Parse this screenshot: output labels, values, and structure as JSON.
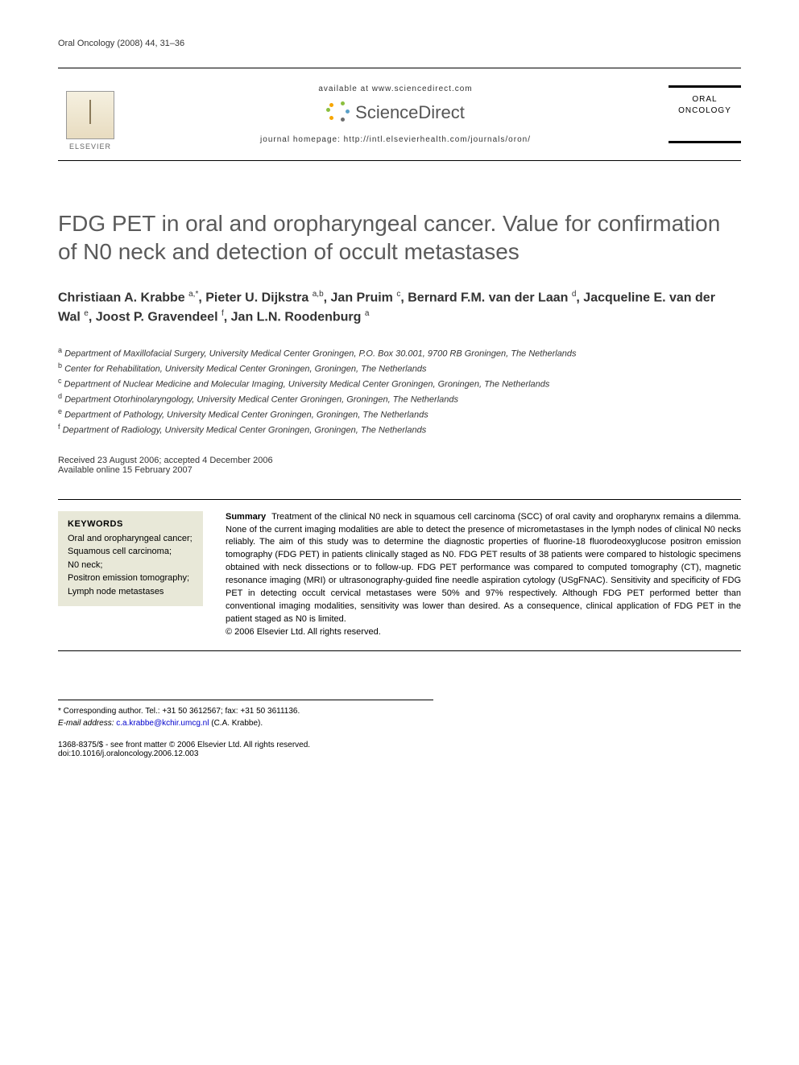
{
  "running_head": "Oral Oncology (2008) 44, 31–36",
  "masthead": {
    "available_at": "available at www.sciencedirect.com",
    "sd_brand": "ScienceDirect",
    "homepage_label": "journal homepage: http://intl.elsevierhealth.com/journals/oron/",
    "publisher_label": "ELSEVIER",
    "journal_cover_line1": "ORAL",
    "journal_cover_line2": "ONCOLOGY",
    "burst_colors": [
      "#f7a600",
      "#8bbf3f",
      "#5aa0c8",
      "#6d6d6d",
      "#f7a600",
      "#8bbf3f"
    ]
  },
  "title": "FDG PET in oral and oropharyngeal cancer. Value for confirmation of N0 neck and detection of occult metastases",
  "authors_html": "Christiaan A. Krabbe <sup>a,*</sup>, Pieter U. Dijkstra <sup>a,b</sup>, Jan Pruim <sup>c</sup>, Bernard F.M. van der Laan <sup>d</sup>, Jacqueline E. van der Wal <sup>e</sup>, Joost P. Gravendeel <sup>f</sup>, Jan L.N. Roodenburg <sup>a</sup>",
  "affiliations": [
    {
      "sup": "a",
      "text": "Department of Maxillofacial Surgery, University Medical Center Groningen, P.O. Box 30.001, 9700 RB Groningen, The Netherlands"
    },
    {
      "sup": "b",
      "text": "Center for Rehabilitation, University Medical Center Groningen, Groningen, The Netherlands"
    },
    {
      "sup": "c",
      "text": "Department of Nuclear Medicine and Molecular Imaging, University Medical Center Groningen, Groningen, The Netherlands"
    },
    {
      "sup": "d",
      "text": "Department Otorhinolaryngology, University Medical Center Groningen, Groningen, The Netherlands"
    },
    {
      "sup": "e",
      "text": "Department of Pathology, University Medical Center Groningen, Groningen, The Netherlands"
    },
    {
      "sup": "f",
      "text": "Department of Radiology, University Medical Center Groningen, Groningen, The Netherlands"
    }
  ],
  "dates": {
    "received_accepted": "Received 23 August 2006; accepted 4 December 2006",
    "online": "Available online 15 February 2007"
  },
  "keywords": {
    "heading": "KEYWORDS",
    "items": [
      "Oral and oropharyngeal cancer;",
      "Squamous cell carcinoma;",
      "N0 neck;",
      "Positron emission tomography;",
      "Lymph node metastases"
    ]
  },
  "summary": {
    "label": "Summary",
    "body": "Treatment of the clinical N0 neck in squamous cell carcinoma (SCC) of oral cavity and oropharynx remains a dilemma. None of the current imaging modalities are able to detect the presence of micrometastases in the lymph nodes of clinical N0 necks reliably. The aim of this study was to determine the diagnostic properties of fluorine-18 fluorodeoxyglucose positron emission tomography (FDG PET) in patients clinically staged as N0. FDG PET results of 38 patients were compared to histologic specimens obtained with neck dissections or to follow-up. FDG PET performance was compared to computed tomography (CT), magnetic resonance imaging (MRI) or ultrasonography-guided fine needle aspiration cytology (USgFNAC). Sensitivity and specificity of FDG PET in detecting occult cervical metastases were 50% and 97% respectively. Although FDG PET performed better than conventional imaging modalities, sensitivity was lower than desired. As a consequence, clinical application of FDG PET in the patient staged as N0 is limited.",
    "copyright": "© 2006 Elsevier Ltd. All rights reserved."
  },
  "footnotes": {
    "corresponding_label": "* Corresponding author. Tel.: +31 50 3612567; fax: +31 50 3611136.",
    "email_label": "E-mail address:",
    "email": "c.a.krabbe@kchir.umcg.nl",
    "email_attribution": "(C.A. Krabbe)."
  },
  "footer": {
    "issn_line": "1368-8375/$ - see front matter © 2006 Elsevier Ltd. All rights reserved.",
    "doi_line": "doi:10.1016/j.oraloncology.2006.12.003"
  },
  "colors": {
    "title_gray": "#5a5a5a",
    "keywords_bg": "#e8e8d8",
    "link_blue": "#0000cc"
  }
}
